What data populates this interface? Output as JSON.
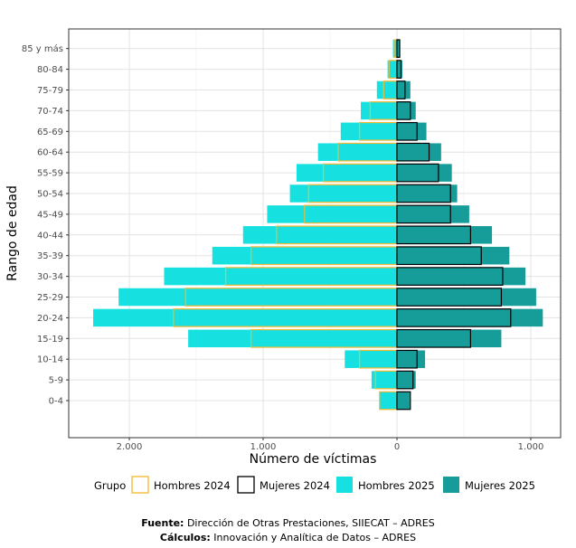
{
  "chart_data": {
    "type": "bar",
    "orientation": "horizontal-population-pyramid",
    "categories": [
      "0-4",
      "5-9",
      "10-14",
      "15-19",
      "20-24",
      "25-29",
      "30-34",
      "35-39",
      "40-44",
      "45-49",
      "50-54",
      "55-59",
      "60-64",
      "65-69",
      "70-74",
      "75-79",
      "80-84",
      "85 y más"
    ],
    "series": [
      {
        "name": "Hombres 2025",
        "side": "left",
        "fill": "#17e0e0",
        "stroke": "none",
        "values": [
          130,
          190,
          390,
          1560,
          2270,
          2080,
          1740,
          1380,
          1150,
          970,
          800,
          750,
          590,
          420,
          270,
          150,
          70,
          30
        ]
      },
      {
        "name": "Mujeres 2025",
        "side": "right",
        "fill": "#169c99",
        "stroke": "none",
        "values": [
          100,
          140,
          210,
          780,
          1090,
          1040,
          960,
          840,
          710,
          540,
          450,
          410,
          330,
          220,
          140,
          100,
          40,
          25
        ]
      },
      {
        "name": "Hombres 2024",
        "side": "left",
        "fill": "none",
        "stroke": "#f5b82e",
        "values": [
          130,
          160,
          280,
          1090,
          1670,
          1580,
          1280,
          1090,
          900,
          690,
          660,
          550,
          440,
          280,
          200,
          100,
          60,
          20
        ]
      },
      {
        "name": "Mujeres 2024",
        "side": "right",
        "fill": "none",
        "stroke": "#000000",
        "values": [
          100,
          120,
          150,
          550,
          850,
          780,
          790,
          630,
          550,
          400,
          400,
          310,
          240,
          150,
          100,
          60,
          30,
          20
        ]
      }
    ],
    "x_ticks": [
      -2000,
      -1000,
      0,
      1000
    ],
    "x_tick_labels": [
      "2.000",
      "1.000",
      "0",
      "1.000"
    ],
    "xlim": [
      -2450,
      1150
    ],
    "xlabel": "Número de víctimas",
    "ylabel": "Rango de edad",
    "legend": {
      "title": "Grupo",
      "position": "bottom",
      "entries": [
        "Hombres 2024",
        "Mujeres 2024",
        "Hombres 2025",
        "Mujeres 2025"
      ]
    },
    "grid": true
  },
  "footer": {
    "source_label": "Fuente:",
    "source_text": " Dirección de Otras Prestaciones, SIIECAT – ADRES",
    "calc_label": "Cálculos:",
    "calc_text": " Innovación y Analítica de Datos – ADRES"
  }
}
